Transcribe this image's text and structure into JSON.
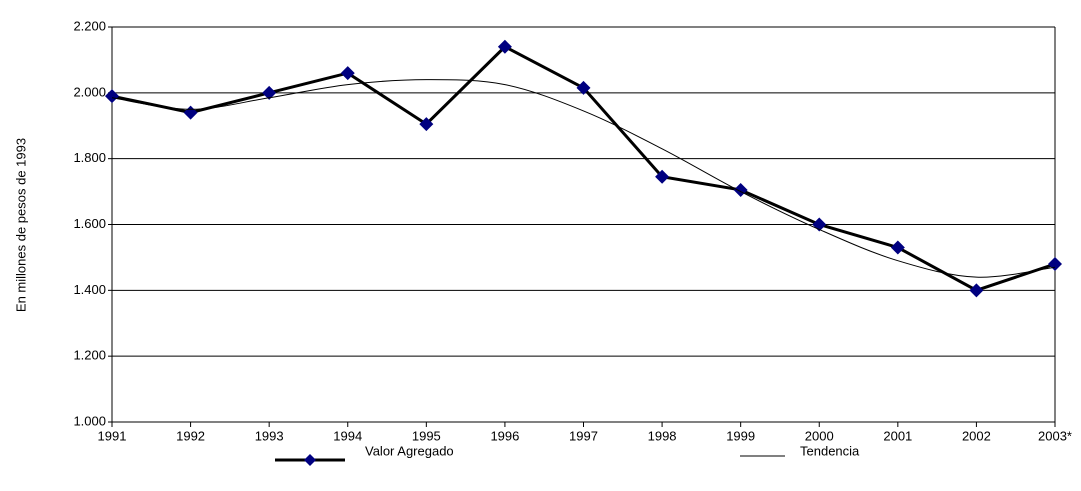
{
  "chart_data": {
    "type": "line",
    "y_label": "En millones de pesos de 1993",
    "categories": [
      "1991",
      "1992",
      "1993",
      "1994",
      "1995",
      "1996",
      "1997",
      "1998",
      "1999",
      "2000",
      "2001",
      "2002",
      "2003*"
    ],
    "series": [
      {
        "name": "Valor Agregado",
        "color": "#000000",
        "marker_color": "#000080",
        "marker": "diamond",
        "line_width": 3,
        "values": [
          1990,
          1940,
          2000,
          2060,
          1905,
          2140,
          2015,
          1745,
          1705,
          1600,
          1530,
          1400,
          1480
        ]
      },
      {
        "name": "Tendencia",
        "color": "#000000",
        "line_width": 1,
        "smooth": true,
        "values": [
          1985,
          1950,
          1985,
          2025,
          2040,
          2025,
          1945,
          1830,
          1700,
          1585,
          1490,
          1440,
          1470
        ]
      }
    ],
    "ylim": [
      1000,
      2200
    ],
    "yticks": [
      {
        "value": 1000,
        "label": "1.000"
      },
      {
        "value": 1200,
        "label": "1.200"
      },
      {
        "value": 1400,
        "label": "1.400"
      },
      {
        "value": 1600,
        "label": "1.600"
      },
      {
        "value": 1800,
        "label": "1.800"
      },
      {
        "value": 2000,
        "label": "2.000"
      },
      {
        "value": 2200,
        "label": "2.200"
      }
    ],
    "grid": true
  }
}
